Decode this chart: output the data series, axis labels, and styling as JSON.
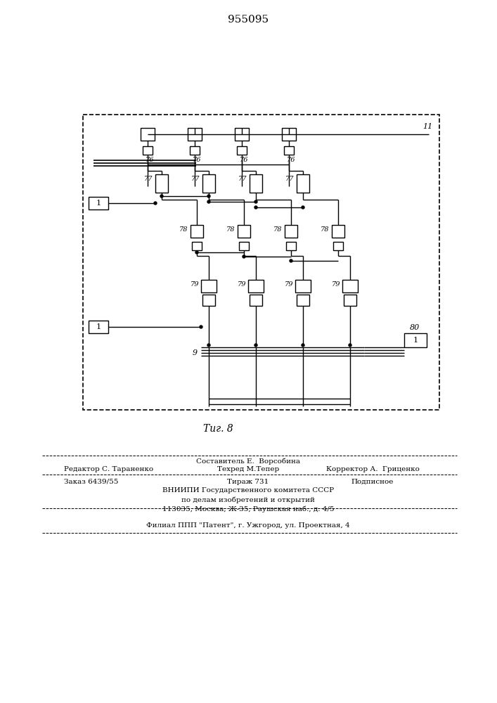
{
  "title": "955095",
  "fig_label": "Τиг. 8",
  "bg_color": "#ffffff",
  "line_color": "#000000",
  "text_color": "#000000",
  "footer_sestavitel": "Составитель Е.  Ворсобина",
  "footer_redaktor": "Редактор С. Тараненко",
  "footer_tehred": "Техред М.Тепер",
  "footer_korrektor": "Корректор А.  Гриценко",
  "footer_zakaz": "Заказ 6439/55",
  "footer_tirazh": "Тираж 731",
  "footer_podpisnoe": "Подписное",
  "footer_vniipи": "ВНИИПИ Государственного комитета СССР",
  "footer_po_delam": "по делам изобретений и открытий",
  "footer_address": "113035, Москва, Ж-35, Раушская наб., д. 4/5",
  "footer_filial": "Филиал ППП \"Патент\", г. Ужгород, ул. Проектная, 4"
}
